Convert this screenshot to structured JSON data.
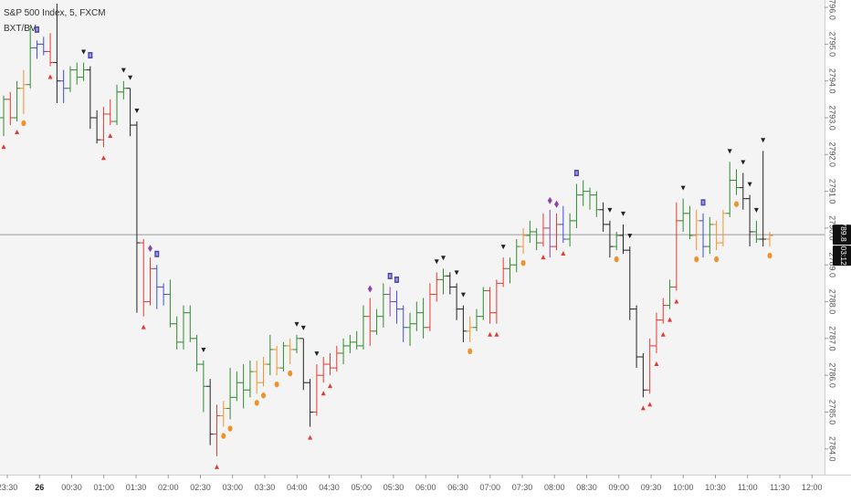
{
  "legend": {
    "symbol": "S&P 500 Index, 5, FXCM",
    "indicator": "BXT/BV"
  },
  "chart_data": {
    "type": "ohlc",
    "symbol": "S&P 500 Index",
    "interval": "5",
    "source": "FXCM",
    "ylim": [
      2783.3,
      2796.2
    ],
    "y_ticks": [
      "2796.0",
      "2795.0",
      "2794.0",
      "2793.0",
      "2792.0",
      "2791.0",
      "2790.0",
      "2789.0",
      "2788.0",
      "2787.0",
      "2786.0",
      "2785.0",
      "2784.0"
    ],
    "x_ticks": [
      "23:30",
      "26",
      "00:30",
      "01:00",
      "01:30",
      "02:00",
      "02:30",
      "03:00",
      "03:30",
      "04:00",
      "04:30",
      "05:00",
      "05:30",
      "06:00",
      "06:30",
      "07:00",
      "07:30",
      "08:00",
      "08:30",
      "09:00",
      "09:30",
      "10:00",
      "10:30",
      "11:00",
      "11:30",
      "12:00"
    ],
    "x_ticks_bold": [
      "26"
    ],
    "last_price": {
      "value": "2789.8",
      "countdown": "03:12",
      "price": 2789.82
    },
    "colors": {
      "green": "#2e8b2e",
      "red": "#e5392f",
      "orange": "#f0922b",
      "blue": "#3b4bdc",
      "black": "#222222",
      "purple": "#8e44ad",
      "bg": "#f4f4f4",
      "axis_bg": "#ffffff",
      "last_line": "#9a9a9a"
    },
    "bars": [
      {
        "o": 2793.0,
        "h": 2793.6,
        "l": 2792.5,
        "c": 2793.5,
        "col": "green",
        "sig": "tri-up"
      },
      {
        "o": 2793.5,
        "h": 2793.7,
        "l": 2792.8,
        "c": 2793.0,
        "col": "red",
        "sig": null
      },
      {
        "o": 2793.0,
        "h": 2794.0,
        "l": 2792.9,
        "c": 2793.8,
        "col": "green",
        "sig": "tri-up"
      },
      {
        "o": 2793.8,
        "h": 2794.3,
        "l": 2793.1,
        "c": 2793.9,
        "col": "orange",
        "sig": "dot"
      },
      {
        "o": 2793.9,
        "h": 2795.5,
        "l": 2793.8,
        "c": 2794.9,
        "col": "green",
        "sig": null
      },
      {
        "o": 2794.9,
        "h": 2795.1,
        "l": 2794.6,
        "c": 2795.0,
        "col": "blue",
        "sig": "square"
      },
      {
        "o": 2795.0,
        "h": 2795.2,
        "l": 2794.7,
        "c": 2794.8,
        "col": "blue",
        "sig": null
      },
      {
        "o": 2794.8,
        "h": 2795.3,
        "l": 2794.4,
        "c": 2794.5,
        "col": "red",
        "sig": "tri-up"
      },
      {
        "o": 2794.5,
        "h": 2796.1,
        "l": 2793.4,
        "c": 2794.0,
        "col": "black",
        "sig": "square"
      },
      {
        "o": 2794.0,
        "h": 2794.3,
        "l": 2793.4,
        "c": 2793.8,
        "col": "blue",
        "sig": null
      },
      {
        "o": 2793.8,
        "h": 2794.4,
        "l": 2793.7,
        "c": 2794.3,
        "col": "green",
        "sig": null
      },
      {
        "o": 2794.3,
        "h": 2794.5,
        "l": 2793.9,
        "c": 2794.1,
        "col": "green",
        "sig": null
      },
      {
        "o": 2794.1,
        "h": 2794.5,
        "l": 2794.0,
        "c": 2794.3,
        "col": "green",
        "sig": "tri-down"
      },
      {
        "o": 2794.3,
        "h": 2794.4,
        "l": 2792.7,
        "c": 2793.0,
        "col": "black",
        "sig": "square"
      },
      {
        "o": 2793.0,
        "h": 2793.2,
        "l": 2792.3,
        "c": 2792.4,
        "col": "black",
        "sig": null
      },
      {
        "o": 2792.4,
        "h": 2793.3,
        "l": 2792.2,
        "c": 2793.1,
        "col": "red",
        "sig": "tri-up"
      },
      {
        "o": 2793.1,
        "h": 2793.5,
        "l": 2792.8,
        "c": 2792.9,
        "col": "red",
        "sig": "tri-up"
      },
      {
        "o": 2792.9,
        "h": 2793.9,
        "l": 2792.8,
        "c": 2793.7,
        "col": "green",
        "sig": null
      },
      {
        "o": 2793.7,
        "h": 2794.0,
        "l": 2793.5,
        "c": 2793.8,
        "col": "green",
        "sig": "tri-down"
      },
      {
        "o": 2793.8,
        "h": 2793.8,
        "l": 2792.5,
        "c": 2792.8,
        "col": "black",
        "sig": "tri-down"
      },
      {
        "o": 2792.8,
        "h": 2792.9,
        "l": 2787.7,
        "c": 2789.6,
        "col": "black",
        "sig": "tri-down"
      },
      {
        "o": 2789.6,
        "h": 2789.7,
        "l": 2787.6,
        "c": 2788.0,
        "col": "red",
        "sig": "tri-up"
      },
      {
        "o": 2788.0,
        "h": 2789.2,
        "l": 2787.9,
        "c": 2788.9,
        "col": "red",
        "sig": "diamond"
      },
      {
        "o": 2788.9,
        "h": 2789.0,
        "l": 2787.8,
        "c": 2788.4,
        "col": "blue",
        "sig": "square"
      },
      {
        "o": 2788.4,
        "h": 2788.5,
        "l": 2787.9,
        "c": 2788.2,
        "col": "blue",
        "sig": null
      },
      {
        "o": 2788.2,
        "h": 2788.6,
        "l": 2787.3,
        "c": 2787.4,
        "col": "green",
        "sig": null
      },
      {
        "o": 2787.4,
        "h": 2787.6,
        "l": 2786.7,
        "c": 2786.9,
        "col": "green",
        "sig": null
      },
      {
        "o": 2786.9,
        "h": 2787.9,
        "l": 2786.7,
        "c": 2787.7,
        "col": "green",
        "sig": null
      },
      {
        "o": 2787.7,
        "h": 2787.9,
        "l": 2786.9,
        "c": 2787.0,
        "col": "green",
        "sig": null
      },
      {
        "o": 2787.0,
        "h": 2787.1,
        "l": 2786.1,
        "c": 2786.3,
        "col": "green",
        "sig": null
      },
      {
        "o": 2786.3,
        "h": 2786.4,
        "l": 2785.0,
        "c": 2785.7,
        "col": "green",
        "sig": "tri-down"
      },
      {
        "o": 2785.7,
        "h": 2785.9,
        "l": 2784.1,
        "c": 2784.4,
        "col": "black",
        "sig": null
      },
      {
        "o": 2784.4,
        "h": 2785.2,
        "l": 2783.8,
        "c": 2784.9,
        "col": "red",
        "sig": "tri-up"
      },
      {
        "o": 2784.9,
        "h": 2785.3,
        "l": 2784.6,
        "c": 2785.1,
        "col": "orange",
        "sig": "dot"
      },
      {
        "o": 2785.1,
        "h": 2786.2,
        "l": 2784.8,
        "c": 2785.4,
        "col": "green",
        "sig": "dot"
      },
      {
        "o": 2785.4,
        "h": 2786.1,
        "l": 2785.3,
        "c": 2785.8,
        "col": "green",
        "sig": null
      },
      {
        "o": 2785.8,
        "h": 2786.3,
        "l": 2785.1,
        "c": 2785.6,
        "col": "green",
        "sig": null
      },
      {
        "o": 2785.6,
        "h": 2786.4,
        "l": 2785.4,
        "c": 2786.1,
        "col": "green",
        "sig": null
      },
      {
        "o": 2786.1,
        "h": 2786.4,
        "l": 2785.5,
        "c": 2785.8,
        "col": "orange",
        "sig": "dot"
      },
      {
        "o": 2785.8,
        "h": 2786.5,
        "l": 2785.7,
        "c": 2786.3,
        "col": "orange",
        "sig": "dot"
      },
      {
        "o": 2786.3,
        "h": 2787.1,
        "l": 2786.0,
        "c": 2786.7,
        "col": "green",
        "sig": null
      },
      {
        "o": 2786.7,
        "h": 2786.8,
        "l": 2786.0,
        "c": 2786.2,
        "col": "orange",
        "sig": "dot"
      },
      {
        "o": 2786.2,
        "h": 2786.9,
        "l": 2786.1,
        "c": 2786.8,
        "col": "green",
        "sig": null
      },
      {
        "o": 2786.8,
        "h": 2787.0,
        "l": 2786.3,
        "c": 2786.7,
        "col": "orange",
        "sig": "dot"
      },
      {
        "o": 2786.7,
        "h": 2787.1,
        "l": 2786.6,
        "c": 2787.0,
        "col": "green",
        "sig": "tri-down"
      },
      {
        "o": 2787.0,
        "h": 2787.0,
        "l": 2785.6,
        "c": 2785.8,
        "col": "black",
        "sig": "tri-down"
      },
      {
        "o": 2785.8,
        "h": 2785.9,
        "l": 2784.6,
        "c": 2785.0,
        "col": "black",
        "sig": "tri-up"
      },
      {
        "o": 2785.0,
        "h": 2786.3,
        "l": 2784.9,
        "c": 2786.0,
        "col": "red",
        "sig": "tri-down"
      },
      {
        "o": 2786.0,
        "h": 2786.5,
        "l": 2785.8,
        "c": 2786.3,
        "col": "red",
        "sig": "tri-up"
      },
      {
        "o": 2786.3,
        "h": 2786.6,
        "l": 2786.0,
        "c": 2786.2,
        "col": "red",
        "sig": "tri-up"
      },
      {
        "o": 2786.2,
        "h": 2786.8,
        "l": 2786.1,
        "c": 2786.6,
        "col": "red",
        "sig": null
      },
      {
        "o": 2786.6,
        "h": 2787.0,
        "l": 2786.3,
        "c": 2786.8,
        "col": "green",
        "sig": null
      },
      {
        "o": 2786.8,
        "h": 2787.1,
        "l": 2786.6,
        "c": 2786.9,
        "col": "green",
        "sig": null
      },
      {
        "o": 2786.9,
        "h": 2787.2,
        "l": 2786.7,
        "c": 2786.8,
        "col": "green",
        "sig": null
      },
      {
        "o": 2786.8,
        "h": 2787.9,
        "l": 2786.7,
        "c": 2787.6,
        "col": "green",
        "sig": null
      },
      {
        "o": 2787.6,
        "h": 2788.1,
        "l": 2786.8,
        "c": 2787.2,
        "col": "red",
        "sig": "diamond"
      },
      {
        "o": 2787.2,
        "h": 2787.8,
        "l": 2787.1,
        "c": 2787.6,
        "col": "green",
        "sig": null
      },
      {
        "o": 2787.6,
        "h": 2788.5,
        "l": 2787.3,
        "c": 2788.2,
        "col": "green",
        "sig": null
      },
      {
        "o": 2788.2,
        "h": 2788.4,
        "l": 2787.6,
        "c": 2788.0,
        "col": "purple",
        "sig": "square"
      },
      {
        "o": 2788.0,
        "h": 2788.3,
        "l": 2787.4,
        "c": 2787.8,
        "col": "blue",
        "sig": "square"
      },
      {
        "o": 2787.8,
        "h": 2787.9,
        "l": 2786.9,
        "c": 2787.3,
        "col": "blue",
        "sig": null
      },
      {
        "o": 2787.3,
        "h": 2787.7,
        "l": 2786.8,
        "c": 2787.4,
        "col": "green",
        "sig": null
      },
      {
        "o": 2787.4,
        "h": 2788.0,
        "l": 2787.2,
        "c": 2787.7,
        "col": "green",
        "sig": null
      },
      {
        "o": 2787.7,
        "h": 2788.1,
        "l": 2787.0,
        "c": 2787.3,
        "col": "green",
        "sig": null
      },
      {
        "o": 2787.3,
        "h": 2788.5,
        "l": 2787.2,
        "c": 2788.2,
        "col": "red",
        "sig": null
      },
      {
        "o": 2788.2,
        "h": 2788.8,
        "l": 2788.0,
        "c": 2788.6,
        "col": "red",
        "sig": "tri-down"
      },
      {
        "o": 2788.6,
        "h": 2788.9,
        "l": 2788.2,
        "c": 2788.7,
        "col": "green",
        "sig": "tri-down"
      },
      {
        "o": 2788.7,
        "h": 2788.8,
        "l": 2788.2,
        "c": 2788.4,
        "col": "black",
        "sig": null
      },
      {
        "o": 2788.4,
        "h": 2788.5,
        "l": 2787.5,
        "c": 2787.8,
        "col": "black",
        "sig": "tri-down"
      },
      {
        "o": 2787.8,
        "h": 2787.9,
        "l": 2786.9,
        "c": 2787.2,
        "col": "black",
        "sig": "tri-down"
      },
      {
        "o": 2787.2,
        "h": 2787.6,
        "l": 2786.9,
        "c": 2787.3,
        "col": "orange",
        "sig": "dot"
      },
      {
        "o": 2787.3,
        "h": 2787.8,
        "l": 2787.2,
        "c": 2787.6,
        "col": "green",
        "sig": null
      },
      {
        "o": 2787.6,
        "h": 2788.4,
        "l": 2787.5,
        "c": 2788.3,
        "col": "green",
        "sig": null
      },
      {
        "o": 2788.3,
        "h": 2788.4,
        "l": 2787.4,
        "c": 2787.7,
        "col": "red",
        "sig": "tri-up"
      },
      {
        "o": 2787.7,
        "h": 2788.6,
        "l": 2787.4,
        "c": 2788.5,
        "col": "red",
        "sig": "tri-up"
      },
      {
        "o": 2788.5,
        "h": 2789.2,
        "l": 2788.4,
        "c": 2788.9,
        "col": "red",
        "sig": "tri-down"
      },
      {
        "o": 2788.9,
        "h": 2789.2,
        "l": 2788.5,
        "c": 2789.0,
        "col": "green",
        "sig": null
      },
      {
        "o": 2789.0,
        "h": 2789.7,
        "l": 2788.8,
        "c": 2789.5,
        "col": "green",
        "sig": null
      },
      {
        "o": 2789.5,
        "h": 2790.0,
        "l": 2789.3,
        "c": 2789.8,
        "col": "orange",
        "sig": "dot"
      },
      {
        "o": 2789.8,
        "h": 2790.2,
        "l": 2789.6,
        "c": 2789.9,
        "col": "green",
        "sig": null
      },
      {
        "o": 2789.9,
        "h": 2790.0,
        "l": 2789.4,
        "c": 2789.6,
        "col": "green",
        "sig": null
      },
      {
        "o": 2789.6,
        "h": 2790.4,
        "l": 2789.5,
        "c": 2790.0,
        "col": "red",
        "sig": "tri-up"
      },
      {
        "o": 2790.0,
        "h": 2790.5,
        "l": 2789.2,
        "c": 2789.5,
        "col": "purple",
        "sig": "diamond"
      },
      {
        "o": 2789.5,
        "h": 2790.4,
        "l": 2789.4,
        "c": 2790.1,
        "col": "red",
        "sig": "diamond"
      },
      {
        "o": 2790.1,
        "h": 2790.6,
        "l": 2789.6,
        "c": 2789.7,
        "col": "blue",
        "sig": "tri-up"
      },
      {
        "o": 2789.7,
        "h": 2790.4,
        "l": 2789.5,
        "c": 2790.2,
        "col": "green",
        "sig": null
      },
      {
        "o": 2790.2,
        "h": 2791.2,
        "l": 2790.0,
        "c": 2790.9,
        "col": "green",
        "sig": "square"
      },
      {
        "o": 2790.9,
        "h": 2791.3,
        "l": 2790.6,
        "c": 2791.0,
        "col": "green",
        "sig": null
      },
      {
        "o": 2791.0,
        "h": 2791.1,
        "l": 2790.5,
        "c": 2790.9,
        "col": "green",
        "sig": null
      },
      {
        "o": 2790.9,
        "h": 2791.0,
        "l": 2790.3,
        "c": 2790.5,
        "col": "green",
        "sig": null
      },
      {
        "o": 2790.5,
        "h": 2790.7,
        "l": 2789.9,
        "c": 2790.1,
        "col": "black",
        "sig": null
      },
      {
        "o": 2790.1,
        "h": 2790.2,
        "l": 2789.2,
        "c": 2789.5,
        "col": "black",
        "sig": "tri-down"
      },
      {
        "o": 2789.5,
        "h": 2789.9,
        "l": 2789.4,
        "c": 2789.8,
        "col": "green",
        "sig": "dot"
      },
      {
        "o": 2789.8,
        "h": 2790.1,
        "l": 2789.3,
        "c": 2789.4,
        "col": "black",
        "sig": "tri-down"
      },
      {
        "o": 2789.4,
        "h": 2789.5,
        "l": 2787.5,
        "c": 2787.8,
        "col": "black",
        "sig": "tri-down"
      },
      {
        "o": 2787.8,
        "h": 2787.9,
        "l": 2786.2,
        "c": 2786.5,
        "col": "black",
        "sig": null
      },
      {
        "o": 2786.5,
        "h": 2786.6,
        "l": 2785.4,
        "c": 2785.6,
        "col": "black",
        "sig": "tri-up"
      },
      {
        "o": 2785.6,
        "h": 2787.0,
        "l": 2785.5,
        "c": 2786.8,
        "col": "red",
        "sig": "tri-up"
      },
      {
        "o": 2786.8,
        "h": 2787.7,
        "l": 2786.6,
        "c": 2787.5,
        "col": "red",
        "sig": "tri-up"
      },
      {
        "o": 2787.5,
        "h": 2788.1,
        "l": 2787.4,
        "c": 2787.9,
        "col": "red",
        "sig": "tri-up"
      },
      {
        "o": 2787.9,
        "h": 2788.6,
        "l": 2787.8,
        "c": 2788.4,
        "col": "green",
        "sig": "tri-up"
      },
      {
        "o": 2788.4,
        "h": 2790.7,
        "l": 2788.3,
        "c": 2790.2,
        "col": "red",
        "sig": "tri-up"
      },
      {
        "o": 2790.2,
        "h": 2790.8,
        "l": 2789.9,
        "c": 2790.4,
        "col": "green",
        "sig": "tri-down"
      },
      {
        "o": 2790.4,
        "h": 2790.6,
        "l": 2789.7,
        "c": 2789.8,
        "col": "green",
        "sig": null
      },
      {
        "o": 2789.8,
        "h": 2790.5,
        "l": 2789.4,
        "c": 2790.2,
        "col": "orange",
        "sig": "dot"
      },
      {
        "o": 2790.2,
        "h": 2790.4,
        "l": 2789.2,
        "c": 2789.5,
        "col": "blue",
        "sig": "square"
      },
      {
        "o": 2789.5,
        "h": 2790.3,
        "l": 2789.3,
        "c": 2790.1,
        "col": "green",
        "sig": null
      },
      {
        "o": 2790.1,
        "h": 2790.2,
        "l": 2789.4,
        "c": 2789.6,
        "col": "orange",
        "sig": "dot"
      },
      {
        "o": 2789.6,
        "h": 2790.5,
        "l": 2789.5,
        "c": 2790.4,
        "col": "orange",
        "sig": null
      },
      {
        "o": 2790.4,
        "h": 2791.8,
        "l": 2790.3,
        "c": 2791.3,
        "col": "green",
        "sig": "tri-down"
      },
      {
        "o": 2791.3,
        "h": 2791.6,
        "l": 2790.9,
        "c": 2791.1,
        "col": "green",
        "sig": "dot"
      },
      {
        "o": 2791.1,
        "h": 2791.5,
        "l": 2790.5,
        "c": 2790.8,
        "col": "black",
        "sig": "tri-down"
      },
      {
        "o": 2790.8,
        "h": 2790.9,
        "l": 2789.5,
        "c": 2789.9,
        "col": "black",
        "sig": "tri-down"
      },
      {
        "o": 2789.9,
        "h": 2790.2,
        "l": 2789.6,
        "c": 2789.7,
        "col": "green",
        "sig": "tri-down"
      },
      {
        "o": 2789.7,
        "h": 2792.1,
        "l": 2789.5,
        "c": 2789.7,
        "col": "black",
        "sig": "tri-down"
      },
      {
        "o": 2789.7,
        "h": 2789.9,
        "l": 2789.5,
        "c": 2789.8,
        "col": "orange",
        "sig": "dot"
      }
    ]
  }
}
